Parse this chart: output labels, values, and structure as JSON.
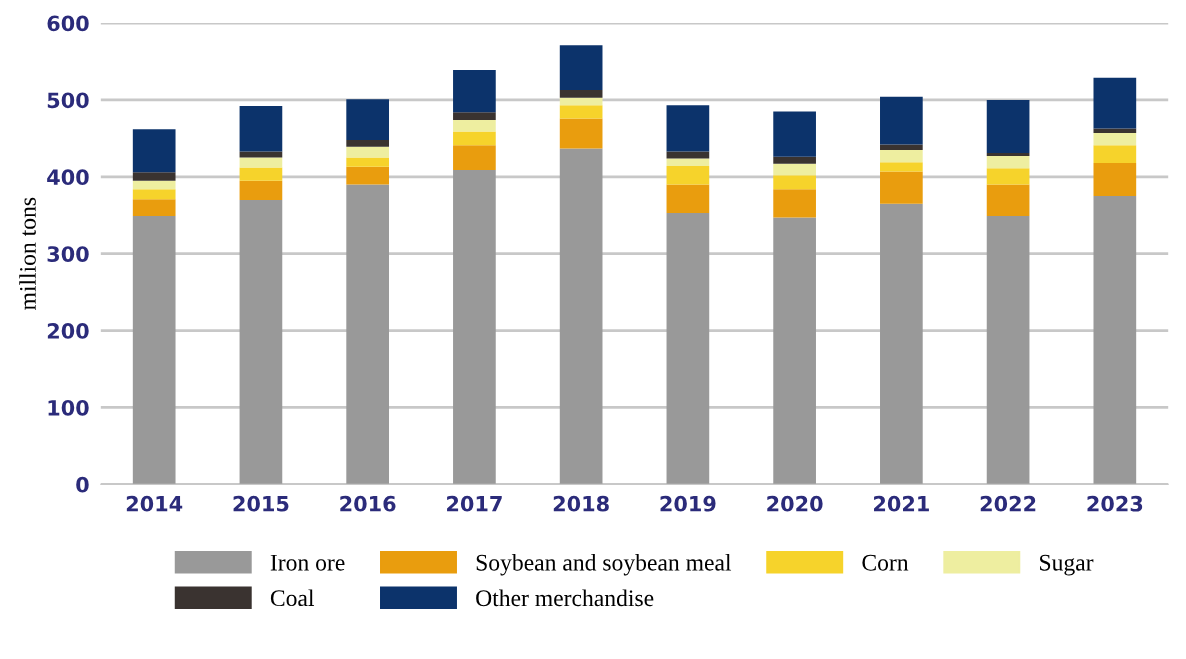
{
  "chart_data": {
    "type": "bar",
    "stacked": true,
    "ylabel": "million tons",
    "categories": [
      "2014",
      "2015",
      "2016",
      "2017",
      "2018",
      "2019",
      "2020",
      "2021",
      "2022",
      "2023"
    ],
    "series": [
      {
        "name": "Iron ore",
        "color": "#999999",
        "values": [
          349,
          370,
          390,
          409,
          437,
          353,
          347,
          365,
          349,
          375
        ]
      },
      {
        "name": "Soybean and soybean meal",
        "color": "#e99d0e",
        "values": [
          22,
          25,
          23,
          32,
          39,
          37,
          37,
          42,
          41,
          43
        ]
      },
      {
        "name": "Corn",
        "color": "#f6d32b",
        "values": [
          13,
          17,
          12,
          18,
          17,
          24,
          18,
          12,
          21,
          23
        ]
      },
      {
        "name": "Sugar",
        "color": "#eeeea0",
        "values": [
          11,
          13,
          14,
          15,
          10,
          10,
          15,
          16,
          16,
          16
        ]
      },
      {
        "name": "Coal",
        "color": "#3a3330",
        "values": [
          11,
          8,
          9,
          10,
          10,
          9,
          9,
          7,
          4,
          6
        ]
      },
      {
        "name": "Other merchandise",
        "color": "#0c336b",
        "values": [
          56,
          59,
          53,
          55,
          58,
          60,
          59,
          62,
          69,
          66
        ]
      }
    ],
    "ylim": [
      0,
      600
    ],
    "yticks": [
      0,
      100,
      200,
      300,
      400,
      500,
      600
    ],
    "grid": "y",
    "legend": "bottom"
  }
}
